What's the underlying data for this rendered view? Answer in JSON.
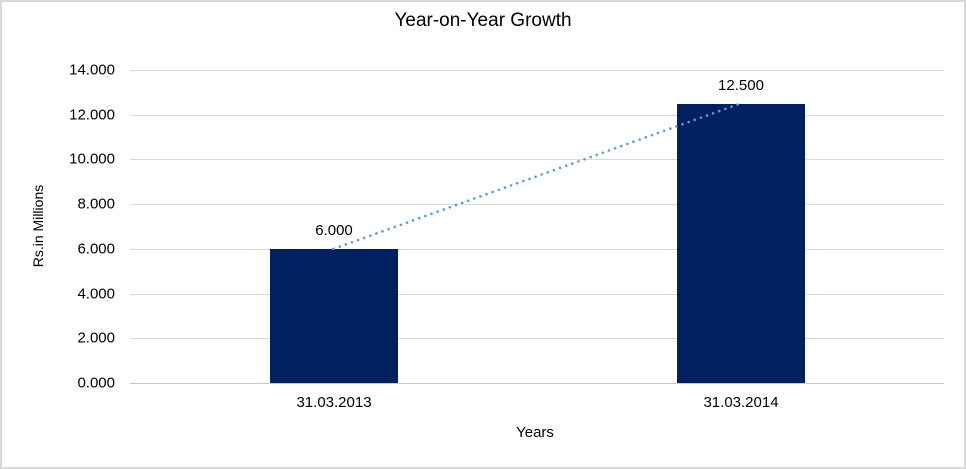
{
  "frame": {
    "border_color": "#D9D9D9",
    "background": "#FFFFFF"
  },
  "chart_data": {
    "type": "bar",
    "title": "Year-on-Year Growth",
    "xlabel": "Years",
    "ylabel": "Rs.in Millions",
    "categories": [
      "31.03.2013",
      "31.03.2014"
    ],
    "values": [
      6.0,
      12.5
    ],
    "value_labels": [
      "6.000",
      "12.500"
    ],
    "ylim": [
      0,
      14
    ],
    "ytick_step": 2,
    "ytick_labels": [
      "0.000",
      "2.000",
      "4.000",
      "6.000",
      "8.000",
      "10.000",
      "12.000",
      "14.000"
    ],
    "grid": true,
    "legend": "none",
    "colors": {
      "bar": "#002060",
      "trendline": "#5B9BD5",
      "gridline": "#D9D9D9",
      "axis_line": "#C9C9C9",
      "text": "#000000"
    },
    "trendline": {
      "style": "dotted",
      "from_category_index": 0,
      "from_value": 6.0,
      "to_category_index": 1,
      "to_value": 12.5
    }
  }
}
